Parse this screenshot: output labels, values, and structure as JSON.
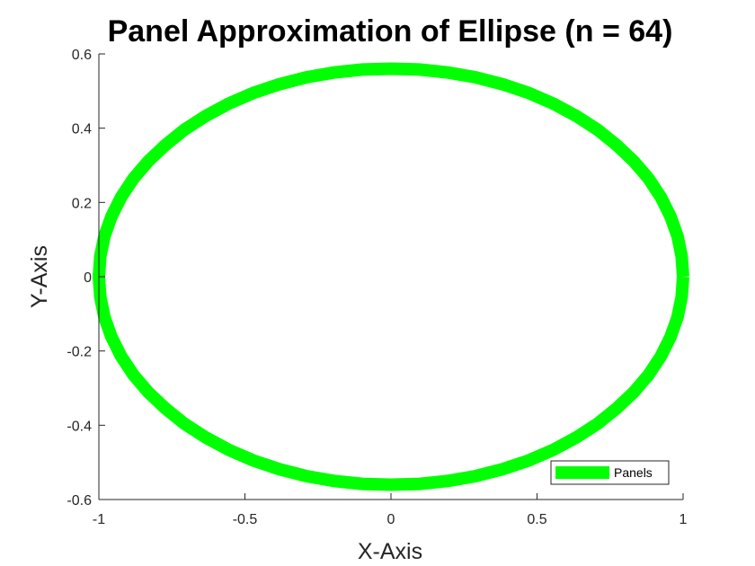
{
  "chart_data": {
    "type": "line",
    "title": "Panel Approximation of Ellipse (n = 64)",
    "xlabel": "X-Axis",
    "ylabel": "Y-Axis",
    "xlim": [
      -1,
      1
    ],
    "ylim": [
      -0.6,
      0.6
    ],
    "xticks": [
      "-1",
      "-0.5",
      "0",
      "0.5",
      "1"
    ],
    "yticks": [
      "-0.6",
      "-0.4",
      "-0.2",
      "0",
      "0.2",
      "0.4",
      "0.6"
    ],
    "grid": false,
    "legend_position": "bottom-right",
    "series": [
      {
        "name": "Panels",
        "color": "#00ff00",
        "x": [
          1,
          0.995,
          0.981,
          0.957,
          0.924,
          0.882,
          0.831,
          0.773,
          0.707,
          0.634,
          0.556,
          0.471,
          0.383,
          0.29,
          0.195,
          0.098,
          0,
          -0.098,
          -0.195,
          -0.29,
          -0.383,
          -0.471,
          -0.556,
          -0.634,
          -0.707,
          -0.773,
          -0.831,
          -0.882,
          -0.924,
          -0.957,
          -0.981,
          -0.995,
          -1,
          -0.995,
          -0.981,
          -0.957,
          -0.924,
          -0.882,
          -0.831,
          -0.773,
          -0.707,
          -0.634,
          -0.556,
          -0.471,
          -0.383,
          -0.29,
          -0.195,
          -0.098,
          0,
          0.098,
          0.195,
          0.29,
          0.383,
          0.471,
          0.556,
          0.634,
          0.707,
          0.773,
          0.831,
          0.882,
          0.924,
          0.957,
          0.981,
          0.995,
          1
        ],
        "y": [
          0,
          0.055,
          0.109,
          0.162,
          0.214,
          0.264,
          0.311,
          0.354,
          0.396,
          0.433,
          0.466,
          0.495,
          0.518,
          0.537,
          0.55,
          0.558,
          0.56,
          0.558,
          0.55,
          0.537,
          0.518,
          0.495,
          0.466,
          0.433,
          0.396,
          0.354,
          0.311,
          0.264,
          0.214,
          0.162,
          0.109,
          0.055,
          0,
          -0.055,
          -0.109,
          -0.162,
          -0.214,
          -0.264,
          -0.311,
          -0.354,
          -0.396,
          -0.433,
          -0.466,
          -0.495,
          -0.518,
          -0.537,
          -0.55,
          -0.558,
          -0.56,
          -0.558,
          -0.55,
          -0.537,
          -0.518,
          -0.495,
          -0.466,
          -0.433,
          -0.396,
          -0.354,
          -0.311,
          -0.264,
          -0.214,
          -0.162,
          -0.109,
          -0.055,
          0
        ]
      }
    ]
  }
}
